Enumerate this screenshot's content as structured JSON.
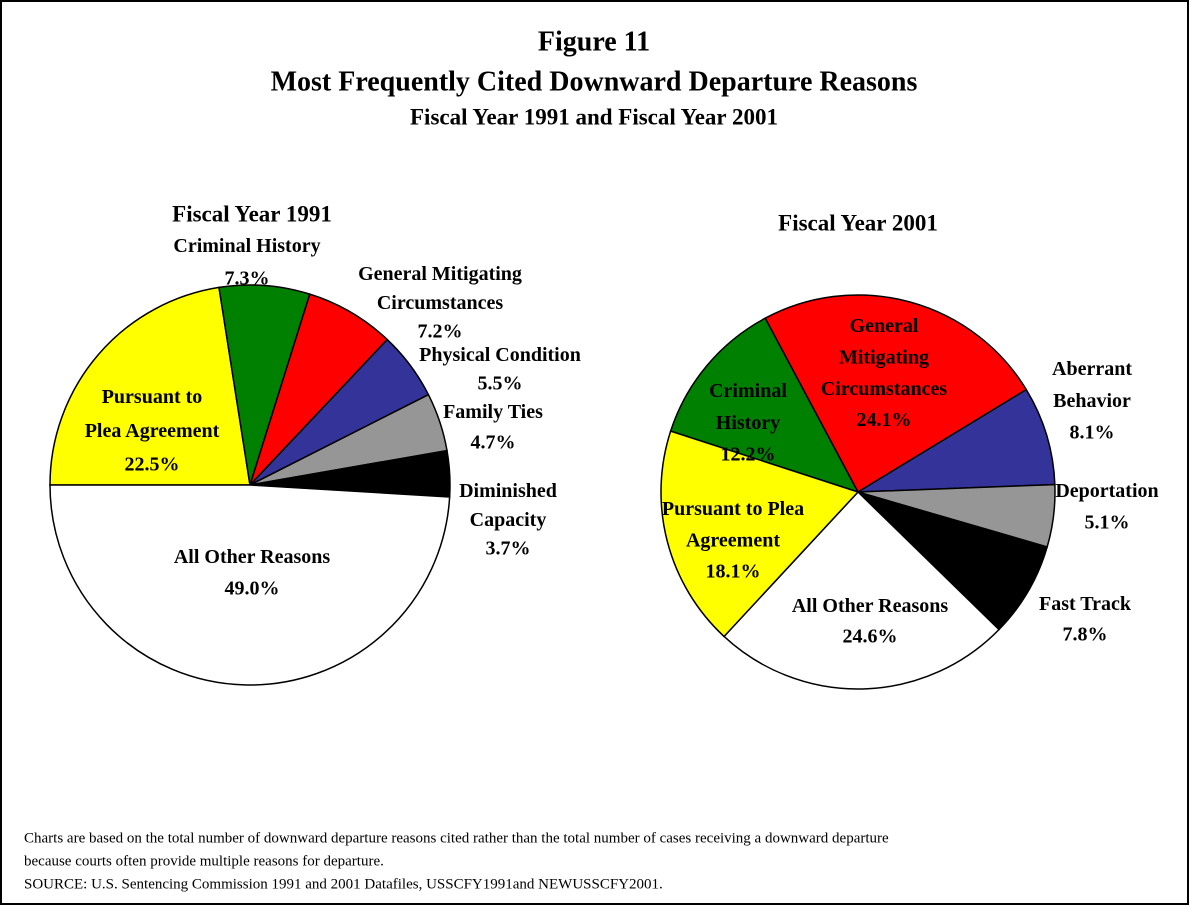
{
  "figure": {
    "label": "Figure 11",
    "title": "Most Frequently Cited Downward Departure Reasons",
    "subtitle": "Fiscal Year 1991 and Fiscal Year 2001"
  },
  "chart_data": [
    {
      "type": "pie",
      "title": "Fiscal Year 1991",
      "categories": [
        "Pursuant to Plea Agreement",
        "Criminal History",
        "General Mitigating Circumstances",
        "Physical Condition",
        "Family Ties",
        "Diminished Capacity",
        "All Other Reasons"
      ],
      "values": [
        22.5,
        7.3,
        7.2,
        5.5,
        4.7,
        3.7,
        49
      ],
      "value_labels": [
        "22.5%",
        "7.3%",
        "7.2%",
        "5.5%",
        "4.7%",
        "3.7%",
        "49.0%"
      ],
      "colors": [
        "#ffff00",
        "#008000",
        "#ff0000",
        "#333399",
        "#969696",
        "#000000",
        "#ffffff"
      ]
    },
    {
      "type": "pie",
      "title": "Fiscal Year 2001",
      "categories": [
        "Criminal History",
        "General Mitigating Circumstances",
        "Aberrant Behavior",
        "Deportation",
        "Fast Track",
        "All Other Reasons",
        "Pursuant to Plea Agreement"
      ],
      "values": [
        12.2,
        24.1,
        8.1,
        5.1,
        7.8,
        24.6,
        18.1
      ],
      "value_labels": [
        "12.2%",
        "24.1%",
        "8.1%",
        "5.1%",
        "7.8%",
        "24.6%",
        "18.1%"
      ],
      "colors": [
        "#008000",
        "#ff0000",
        "#333399",
        "#969696",
        "#000000",
        "#ffffff",
        "#ffff00"
      ]
    }
  ],
  "notes": [
    "Charts are based on the total number of downward departure reasons cited rather than the total number of cases receiving a downward departure",
    "because courts often provide multiple reasons for departure.",
    "SOURCE:  U.S. Sentencing Commission 1991 and 2001 Datafiles, USSCFY1991and NEWUSSCFY2001."
  ]
}
